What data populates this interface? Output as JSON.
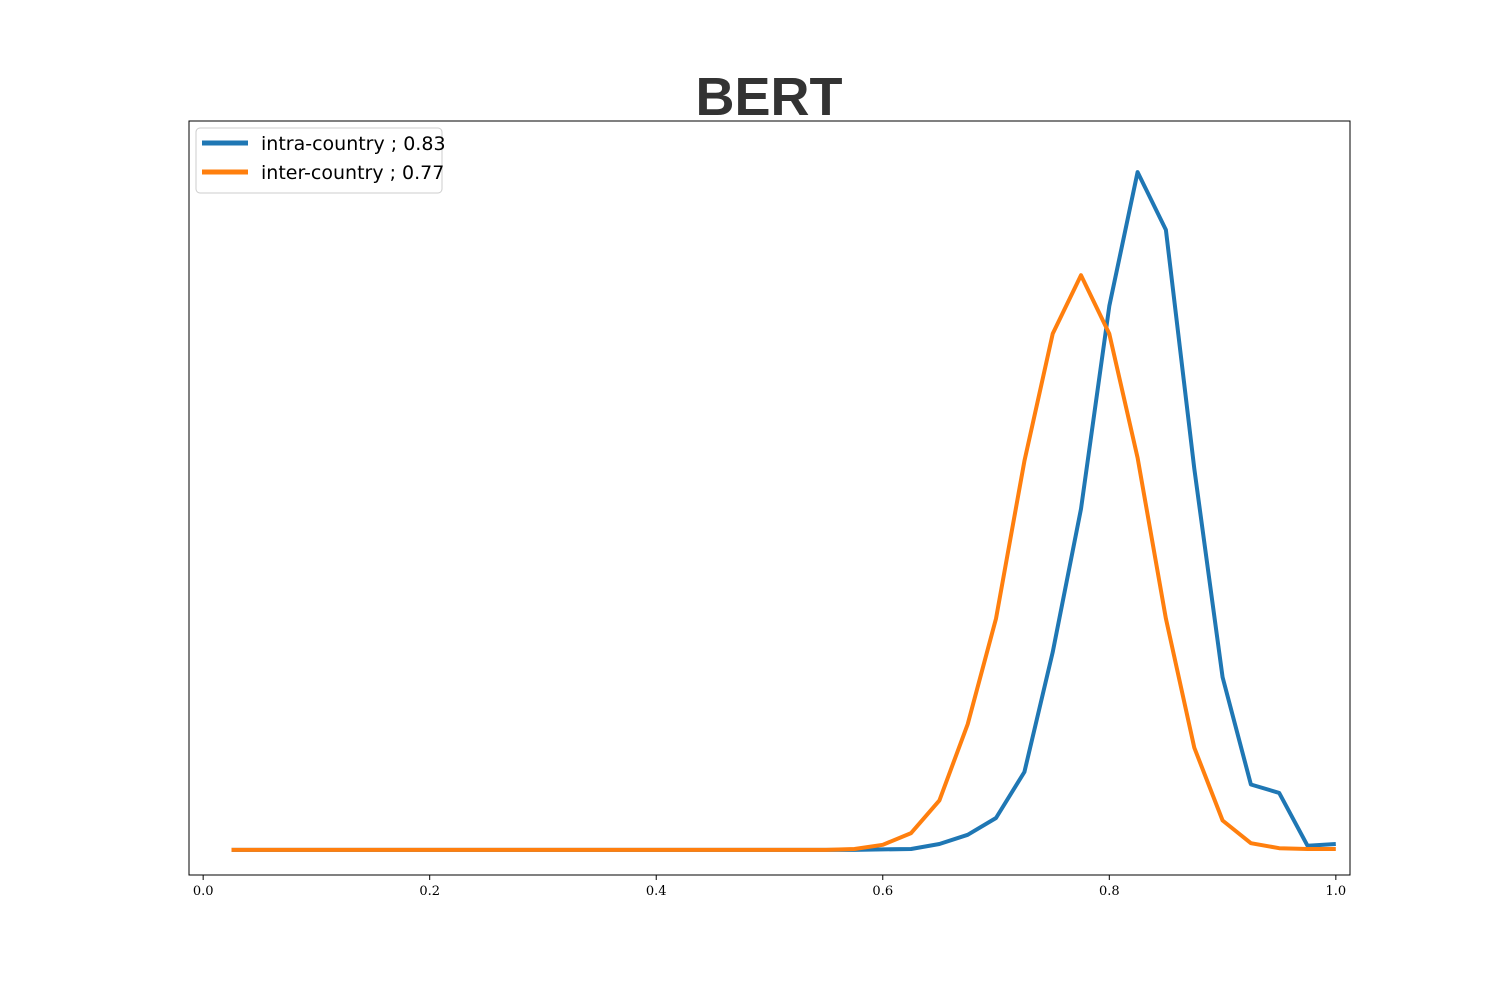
{
  "chart_data": {
    "type": "line",
    "title": "BERT",
    "xlabel": "",
    "ylabel": "",
    "xlim": [
      -0.0125,
      1.0125
    ],
    "ylim": [
      -0.3,
      8.7
    ],
    "xticks": [
      0.0,
      0.2,
      0.4,
      0.6,
      0.8,
      1.0
    ],
    "xtick_labels": [
      "0.0",
      "0.2",
      "0.4",
      "0.6",
      "0.8",
      "1.0"
    ],
    "yticks_visible": false,
    "grid": false,
    "legend_position": "top-left",
    "x": [
      0.025,
      0.05,
      0.075,
      0.1,
      0.125,
      0.15,
      0.175,
      0.2,
      0.225,
      0.25,
      0.275,
      0.3,
      0.325,
      0.35,
      0.375,
      0.4,
      0.425,
      0.45,
      0.475,
      0.5,
      0.525,
      0.55,
      0.575,
      0.6,
      0.625,
      0.65,
      0.675,
      0.7,
      0.725,
      0.75,
      0.775,
      0.8,
      0.825,
      0.85,
      0.875,
      0.9,
      0.925,
      0.95,
      0.975,
      1.0
    ],
    "series": [
      {
        "name": "intra-country ; 0.83",
        "color": "#1f77b4",
        "values": [
          0,
          0,
          0,
          0,
          0,
          0,
          0,
          0,
          0,
          0,
          0,
          0,
          0,
          0,
          0,
          0,
          0,
          0,
          0,
          0,
          0,
          0,
          0,
          0.005,
          0.01,
          0.07,
          0.18,
          0.38,
          0.93,
          2.36,
          4.07,
          6.49,
          8.09,
          7.4,
          4.55,
          2.06,
          0.78,
          0.68,
          0.05,
          0.07
        ]
      },
      {
        "name": "inter-country ; 0.77",
        "color": "#ff7f0e",
        "values": [
          0,
          0,
          0,
          0,
          0,
          0,
          0,
          0,
          0,
          0,
          0,
          0,
          0,
          0,
          0,
          0,
          0,
          0,
          0,
          0,
          0,
          0,
          0.01,
          0.06,
          0.2,
          0.59,
          1.5,
          2.76,
          4.64,
          6.16,
          6.86,
          6.16,
          4.68,
          2.76,
          1.22,
          0.35,
          0.08,
          0.02,
          0.01,
          0.01
        ]
      }
    ]
  }
}
